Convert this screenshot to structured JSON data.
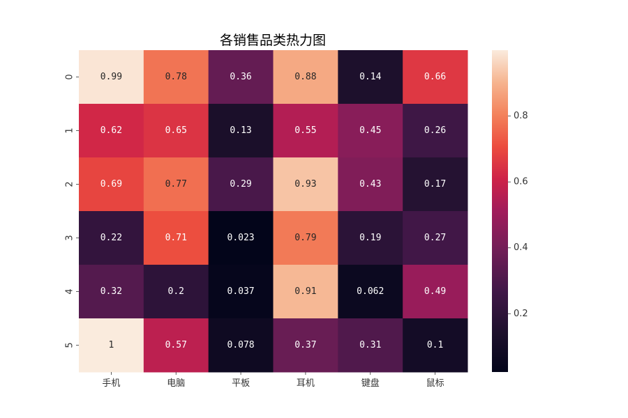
{
  "chart_data": {
    "type": "heatmap",
    "title": "各销售品类热力图",
    "columns": [
      "手机",
      "电脑",
      "平板",
      "耳机",
      "键盘",
      "鼠标"
    ],
    "rows": [
      "0",
      "1",
      "2",
      "3",
      "4",
      "5"
    ],
    "values": [
      [
        0.99,
        0.78,
        0.36,
        0.88,
        0.14,
        0.66
      ],
      [
        0.62,
        0.65,
        0.13,
        0.55,
        0.45,
        0.26
      ],
      [
        0.69,
        0.77,
        0.29,
        0.93,
        0.43,
        0.17
      ],
      [
        0.22,
        0.71,
        0.023,
        0.79,
        0.19,
        0.27
      ],
      [
        0.32,
        0.2,
        0.037,
        0.91,
        0.062,
        0.49
      ],
      [
        1,
        0.57,
        0.078,
        0.37,
        0.31,
        0.1
      ]
    ],
    "labels": [
      [
        "0.99",
        "0.78",
        "0.36",
        "0.88",
        "0.14",
        "0.66"
      ],
      [
        "0.62",
        "0.65",
        "0.13",
        "0.55",
        "0.45",
        "0.26"
      ],
      [
        "0.69",
        "0.77",
        "0.29",
        "0.93",
        "0.43",
        "0.17"
      ],
      [
        "0.22",
        "0.71",
        "0.023",
        "0.79",
        "0.19",
        "0.27"
      ],
      [
        "0.32",
        "0.2",
        "0.037",
        "0.91",
        "0.062",
        "0.49"
      ],
      [
        "1",
        "0.57",
        "0.078",
        "0.37",
        "0.31",
        "0.1"
      ]
    ],
    "colorbar": {
      "range": [
        0.023,
        1.0
      ],
      "ticks": [
        0.2,
        0.4,
        0.6,
        0.8
      ],
      "tick_labels": [
        "0.2",
        "0.4",
        "0.6",
        "0.8"
      ],
      "colormap": "rocket"
    },
    "xlabel": "",
    "ylabel": ""
  }
}
